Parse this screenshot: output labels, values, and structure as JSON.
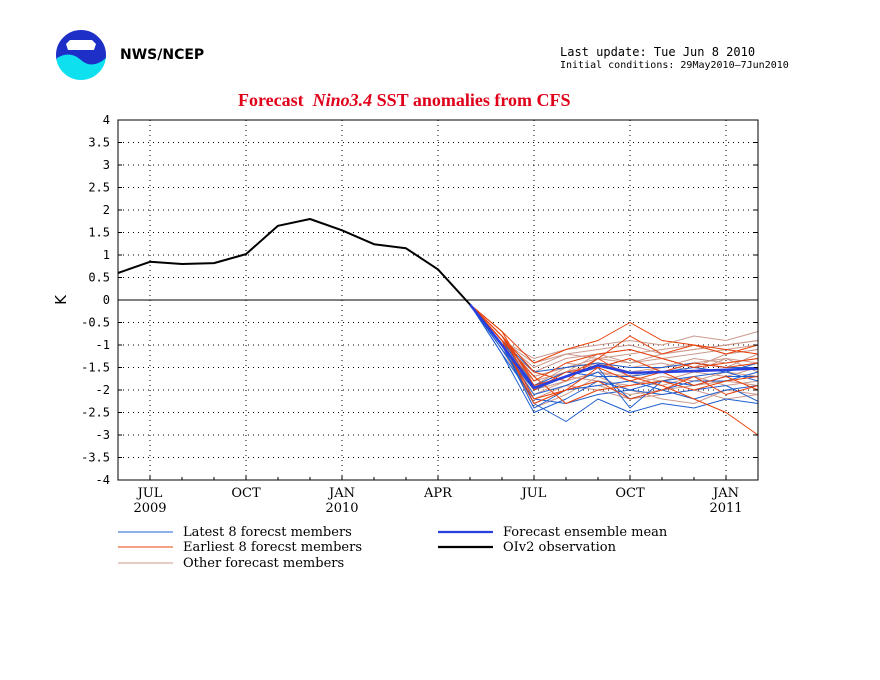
{
  "header": {
    "org": "NWS/NCEP",
    "last_update": "Last update: Tue Jun  8 2010",
    "initial_conditions": "Initial conditions: 29May2010–7Jun2010",
    "title_prefix": "Forecast",
    "title_italic": "Nino3.4",
    "title_suffix": "SST anomalies from CFS"
  },
  "colors": {
    "latest": "#1f5fd0",
    "earliest": "#e8400a",
    "other": "#cc9a8e",
    "mean": "#2a3fe0",
    "observation": "#000000",
    "title": "#e0001a"
  },
  "chart_data": {
    "type": "line",
    "title": "Forecast Nino3.4 SST anomalies from CFS",
    "ylabel": "K",
    "ylim": [
      -4,
      4
    ],
    "yticks": [
      "4",
      "3.5",
      "3",
      "2.5",
      "2",
      "1.5",
      "1",
      "0.5",
      "0",
      "-0.5",
      "-1",
      "-1.5",
      "-2",
      "-2.5",
      "-3",
      "-3.5",
      "-4"
    ],
    "x_months": [
      "2009-06",
      "2009-07",
      "2009-08",
      "2009-09",
      "2009-10",
      "2009-11",
      "2009-12",
      "2010-01",
      "2010-02",
      "2010-03",
      "2010-04",
      "2010-05",
      "2010-06",
      "2010-07",
      "2010-08",
      "2010-09",
      "2010-10",
      "2010-11",
      "2010-12",
      "2011-01",
      "2011-02"
    ],
    "xticks": [
      {
        "month": "2009-07",
        "label": "JUL",
        "year": "2009"
      },
      {
        "month": "2009-10",
        "label": "OCT",
        "year": ""
      },
      {
        "month": "2010-01",
        "label": "JAN",
        "year": "2010"
      },
      {
        "month": "2010-04",
        "label": "APR",
        "year": ""
      },
      {
        "month": "2010-07",
        "label": "JUL",
        "year": ""
      },
      {
        "month": "2010-10",
        "label": "OCT",
        "year": ""
      },
      {
        "month": "2011-01",
        "label": "JAN",
        "year": "2011"
      }
    ],
    "forecast_months": [
      "2010-05",
      "2010-06",
      "2010-07",
      "2010-08",
      "2010-09",
      "2010-10",
      "2010-11",
      "2010-12",
      "2011-01",
      "2011-02"
    ],
    "grid": true,
    "legend": [
      {
        "label": "Latest 8 forecst members",
        "series": "latest"
      },
      {
        "label": "Earliest 8 forecst members",
        "series": "earliest"
      },
      {
        "label": "Other forecast members",
        "series": "other"
      },
      {
        "label": "Forecast ensemble mean",
        "series": "mean"
      },
      {
        "label": "OIv2 observation",
        "series": "observation"
      }
    ],
    "observation": [
      0.6,
      0.85,
      0.8,
      0.82,
      1.02,
      1.65,
      1.8,
      1.55,
      1.24,
      1.15,
      0.68,
      -0.1
    ],
    "ensemble_mean": [
      -0.1,
      -1.0,
      -1.95,
      -1.7,
      -1.45,
      -1.62,
      -1.6,
      -1.58,
      -1.55,
      -1.52
    ],
    "latest_members": [
      [
        -0.1,
        -1.2,
        -2.5,
        -2.2,
        -1.8,
        -2.0,
        -2.1,
        -2.0,
        -1.9,
        -2.25
      ],
      [
        -0.1,
        -1.0,
        -2.3,
        -2.7,
        -2.2,
        -2.5,
        -2.3,
        -2.4,
        -2.2,
        -2.3
      ],
      [
        -0.1,
        -1.1,
        -2.0,
        -1.7,
        -1.5,
        -2.4,
        -1.8,
        -1.7,
        -1.6,
        -1.8
      ],
      [
        -0.1,
        -0.9,
        -1.6,
        -1.5,
        -1.4,
        -1.5,
        -1.5,
        -1.4,
        -1.5,
        -1.5
      ],
      [
        -0.1,
        -1.0,
        -2.4,
        -2.0,
        -1.9,
        -1.8,
        -2.0,
        -2.2,
        -2.0,
        -1.9
      ],
      [
        -0.1,
        -1.2,
        -2.2,
        -2.3,
        -2.1,
        -2.0,
        -1.8,
        -1.9,
        -1.7,
        -1.7
      ],
      [
        -0.1,
        -0.9,
        -1.9,
        -1.6,
        -1.7,
        -1.7,
        -1.6,
        -1.5,
        -1.6,
        -1.4
      ],
      [
        -0.1,
        -1.1,
        -2.1,
        -1.9,
        -1.6,
        -2.2,
        -2.0,
        -1.8,
        -1.8,
        -1.6
      ]
    ],
    "earliest_members": [
      [
        -0.1,
        -0.7,
        -1.4,
        -1.1,
        -0.9,
        -0.5,
        -0.9,
        -1.0,
        -1.2,
        -1.0
      ],
      [
        -0.1,
        -0.8,
        -1.6,
        -1.8,
        -1.3,
        -1.7,
        -1.9,
        -2.2,
        -2.5,
        -3.0
      ],
      [
        -0.1,
        -0.9,
        -2.2,
        -2.0,
        -1.5,
        -1.8,
        -1.6,
        -1.9,
        -1.7,
        -2.0
      ],
      [
        -0.1,
        -0.8,
        -1.8,
        -1.4,
        -1.2,
        -1.1,
        -1.3,
        -1.5,
        -1.4,
        -1.3
      ],
      [
        -0.1,
        -0.9,
        -2.3,
        -2.0,
        -1.8,
        -2.2,
        -2.0,
        -1.7,
        -2.1,
        -1.9
      ],
      [
        -0.1,
        -0.7,
        -1.9,
        -1.7,
        -1.3,
        -0.8,
        -1.2,
        -1.0,
        -1.1,
        -1.2
      ],
      [
        -0.1,
        -0.8,
        -2.0,
        -1.6,
        -1.5,
        -1.3,
        -1.6,
        -1.4,
        -1.5,
        -1.4
      ],
      [
        -0.1,
        -0.9,
        -1.7,
        -2.3,
        -2.0,
        -1.9,
        -1.8,
        -2.0,
        -1.8,
        -1.7
      ]
    ],
    "other_members": [
      [
        -0.1,
        -0.9,
        -1.3,
        -1.1,
        -1.0,
        -0.9,
        -1.0,
        -0.8,
        -0.9,
        -0.7
      ],
      [
        -0.1,
        -0.9,
        -1.5,
        -1.2,
        -1.1,
        -1.0,
        -1.2,
        -1.1,
        -1.0,
        -0.9
      ],
      [
        -0.1,
        -1.0,
        -1.7,
        -1.5,
        -1.3,
        -1.4,
        -1.3,
        -1.5,
        -1.2,
        -1.1
      ],
      [
        -0.1,
        -0.9,
        -1.9,
        -1.6,
        -1.4,
        -1.6,
        -1.5,
        -1.3,
        -1.4,
        -1.3
      ],
      [
        -0.1,
        -1.0,
        -2.1,
        -1.8,
        -1.6,
        -1.7,
        -1.8,
        -1.6,
        -1.7,
        -1.5
      ],
      [
        -0.1,
        -1.1,
        -2.3,
        -2.0,
        -1.9,
        -2.1,
        -2.0,
        -1.9,
        -1.8,
        -1.9
      ],
      [
        -0.1,
        -1.0,
        -1.6,
        -1.3,
        -1.2,
        -1.1,
        -1.3,
        -1.2,
        -1.1,
        -1.0
      ],
      [
        -0.1,
        -0.9,
        -1.8,
        -1.4,
        -1.5,
        -1.3,
        -1.6,
        -1.4,
        -1.5,
        -1.2
      ],
      [
        -0.1,
        -1.0,
        -2.0,
        -1.7,
        -1.8,
        -1.9,
        -1.7,
        -1.8,
        -1.6,
        -1.7
      ],
      [
        -0.1,
        -1.1,
        -2.2,
        -1.9,
        -2.0,
        -2.2,
        -2.1,
        -2.0,
        -2.2,
        -2.1
      ],
      [
        -0.1,
        -0.9,
        -1.4,
        -1.2,
        -1.3,
        -1.2,
        -1.1,
        -1.0,
        -1.2,
        -1.1
      ],
      [
        -0.1,
        -1.0,
        -1.9,
        -1.5,
        -1.4,
        -1.5,
        -1.4,
        -1.6,
        -1.3,
        -1.4
      ],
      [
        -0.1,
        -1.0,
        -2.4,
        -2.1,
        -1.7,
        -2.0,
        -2.2,
        -2.3,
        -2.0,
        -2.1
      ],
      [
        -0.1,
        -1.1,
        -2.0,
        -1.8,
        -1.6,
        -1.8,
        -1.9,
        -1.7,
        -1.9,
        -1.8
      ],
      [
        -0.1,
        -0.9,
        -1.7,
        -1.5,
        -1.4,
        -1.7,
        -1.5,
        -1.4,
        -1.3,
        -1.6
      ],
      [
        -0.1,
        -1.0,
        -1.8,
        -1.6,
        -1.2,
        -1.4,
        -1.2,
        -1.1,
        -1.0,
        -0.9
      ]
    ]
  }
}
